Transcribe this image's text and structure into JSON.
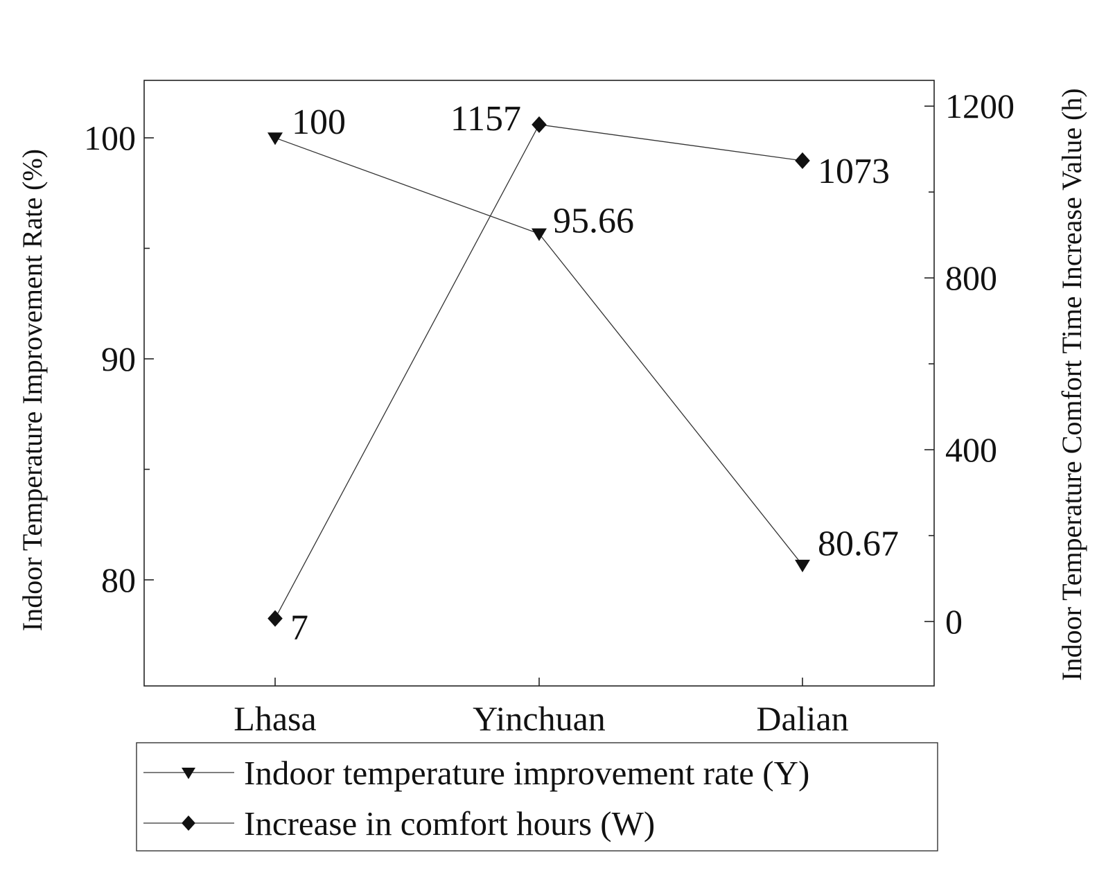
{
  "chart_data": {
    "type": "line",
    "categories": [
      "Lhasa",
      "Yinchuan",
      "Dalian"
    ],
    "y_left": {
      "label": "Indoor Temperature Improvement Rate (%)",
      "range": [
        75.2,
        102.6
      ],
      "ticks": [
        80,
        90,
        100
      ]
    },
    "y_right": {
      "label": "Indoor Temperature Comfort Time Increase Value (h)",
      "range": [
        -150,
        1260
      ],
      "ticks": [
        0,
        400,
        800,
        1200
      ]
    },
    "grid": false,
    "legend_placement": "bottom",
    "series": [
      {
        "name": "Indoor temperature improvement rate (Y)",
        "axis": "left",
        "marker": "triangle-down",
        "values": [
          100,
          95.66,
          80.67
        ],
        "labels": [
          "100",
          "95.66",
          "80.67"
        ]
      },
      {
        "name": "Increase in comfort hours (W)",
        "axis": "right",
        "marker": "diamond",
        "values": [
          7,
          1157,
          1073
        ],
        "labels": [
          "7",
          "1157",
          "1073"
        ]
      }
    ]
  }
}
